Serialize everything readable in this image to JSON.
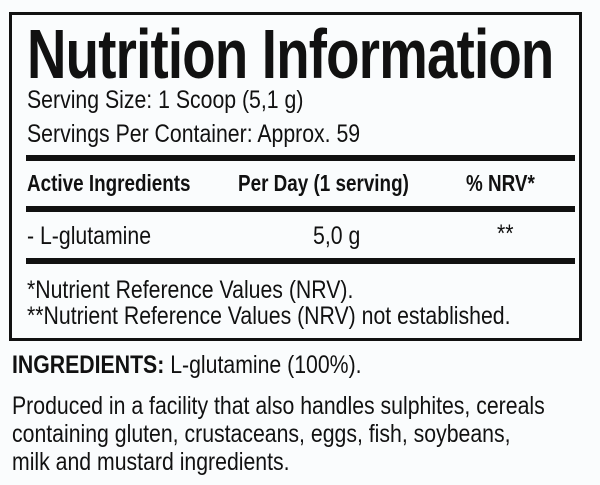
{
  "title": "Nutrition Information",
  "serving_size": "Serving Size: 1 Scoop (5,1 g)",
  "servings_per_container": "Servings Per Container: Approx. 59",
  "table": {
    "headers": [
      "Active Ingredients",
      "Per Day (1 serving)",
      "% NRV*"
    ],
    "rows": [
      {
        "ingredient": "- L-glutamine",
        "per_day": "5,0 g",
        "nrv": "**"
      }
    ]
  },
  "footnotes": [
    "*Nutrient Reference Values (NRV).",
    "**Nutrient Reference Values (NRV) not established."
  ],
  "ingredients": {
    "label": "INGREDIENTS:",
    "text": " L-glutamine (100%)."
  },
  "allergen_lines": [
    "Produced in a facility that also handles sulphites, cereals",
    "containing gluten, crustaceans, eggs, fish, soybeans,",
    "milk and mustard ingredients."
  ]
}
